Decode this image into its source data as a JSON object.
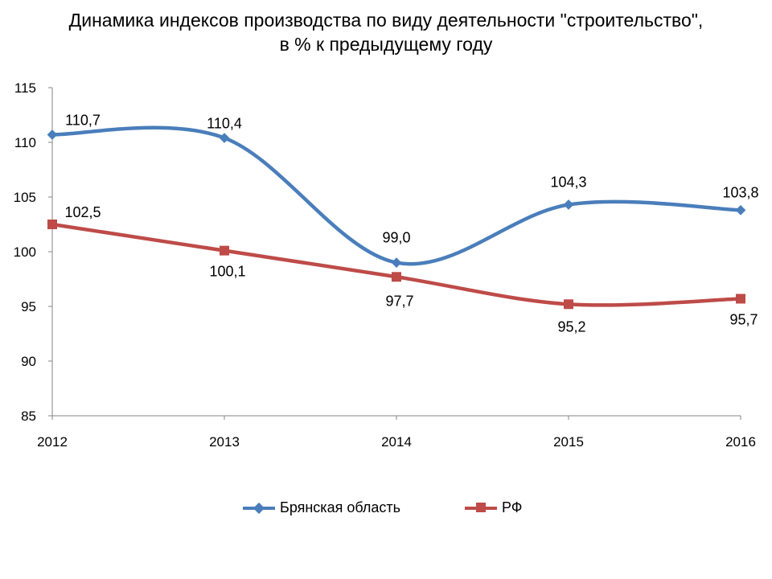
{
  "chart_data": {
    "type": "line",
    "title": "Динамика индексов производства по виду деятельности \"строительство\",",
    "subtitle": "в % к предыдущему году",
    "categories": [
      "2012",
      "2013",
      "2014",
      "2015",
      "2016"
    ],
    "ylim": [
      85,
      115
    ],
    "yticks": [
      85,
      90,
      95,
      100,
      105,
      110,
      115
    ],
    "grid": false,
    "legend": "bottom",
    "series": [
      {
        "name": "Брянская область",
        "values": [
          110.7,
          110.4,
          99.0,
          104.3,
          103.8
        ],
        "labels": [
          "110,7",
          "110,4",
          "99,0",
          "104,3",
          "103,8"
        ],
        "color": "#4A7EBB",
        "marker": "diamond"
      },
      {
        "name": "РФ",
        "values": [
          102.5,
          100.1,
          97.7,
          95.2,
          95.7
        ],
        "labels": [
          "102,5",
          "100,1",
          "97,7",
          "95,2",
          "95,7"
        ],
        "color": "#BE4B48",
        "marker": "square"
      }
    ]
  }
}
